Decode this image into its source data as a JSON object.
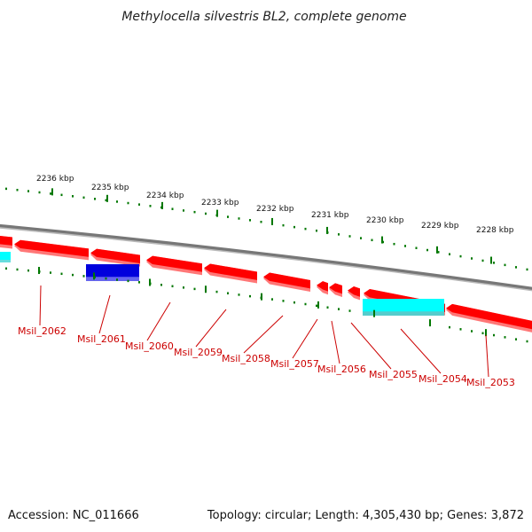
{
  "title": "Methylocella silvestris BL2, complete genome",
  "colors": {
    "forward_gene": "#ff0000",
    "forward_gene_shade": "#ff7777",
    "reverse_blue": "#0000dd",
    "reverse_cyan": "#00ffff",
    "tick": "#007700",
    "backbone": "#888888",
    "label": "#cc0000"
  },
  "kbp_scale": [
    {
      "label": "2236 kbp"
    },
    {
      "label": "2235 kbp"
    },
    {
      "label": "2234 kbp"
    },
    {
      "label": "2233 kbp"
    },
    {
      "label": "2232 kbp"
    },
    {
      "label": "2231 kbp"
    },
    {
      "label": "2230 kbp"
    },
    {
      "label": "2229 kbp"
    },
    {
      "label": "2228 kbp"
    }
  ],
  "gene_labels": [
    {
      "name": "Msil_2062"
    },
    {
      "name": "Msil_2061"
    },
    {
      "name": "Msil_2060"
    },
    {
      "name": "Msil_2059"
    },
    {
      "name": "Msil_2058"
    },
    {
      "name": "Msil_2057"
    },
    {
      "name": "Msil_2056"
    },
    {
      "name": "Msil_2055"
    },
    {
      "name": "Msil_2054"
    },
    {
      "name": "Msil_2053"
    }
  ],
  "footer": {
    "accession": "Accession: NC_011666",
    "summary": "Topology: circular; Length: 4,305,430 bp; Genes: 3,872"
  }
}
